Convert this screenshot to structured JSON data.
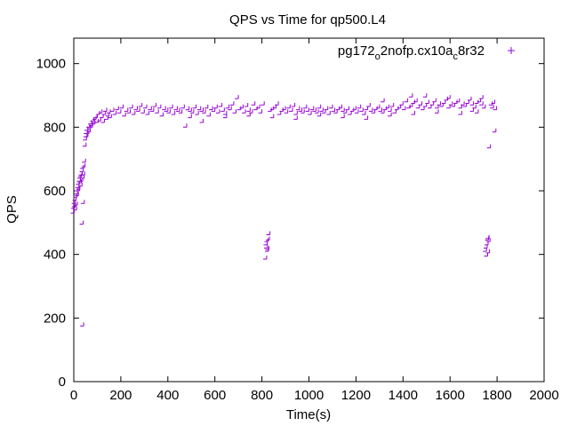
{
  "chart_data": {
    "type": "scatter",
    "title": "QPS vs Time for qp500.L4",
    "xlabel": "Time(s)",
    "ylabel": "QPS",
    "xlim": [
      0,
      2000
    ],
    "ylim": [
      0,
      1080
    ],
    "xticks": [
      0,
      200,
      400,
      600,
      800,
      1000,
      1200,
      1400,
      1600,
      1800,
      2000
    ],
    "yticks": [
      0,
      200,
      400,
      600,
      800,
      1000
    ],
    "grid": false,
    "legend_position": "top-right",
    "marker": "+",
    "series": [
      {
        "name_parts": [
          "pg172",
          "o",
          "2nofp.cx10a",
          "c",
          "8r32"
        ],
        "color": "#9400d3",
        "points": [
          [
            2,
            530
          ],
          [
            4,
            545
          ],
          [
            6,
            560
          ],
          [
            8,
            550
          ],
          [
            10,
            570
          ],
          [
            12,
            540
          ],
          [
            14,
            580
          ],
          [
            16,
            590
          ],
          [
            18,
            600
          ],
          [
            20,
            585
          ],
          [
            22,
            610
          ],
          [
            24,
            620
          ],
          [
            26,
            605
          ],
          [
            28,
            630
          ],
          [
            30,
            640
          ],
          [
            32,
            625
          ],
          [
            34,
            645
          ],
          [
            36,
            650
          ],
          [
            38,
            630
          ],
          [
            40,
            660
          ],
          [
            42,
            670
          ],
          [
            44,
            640
          ],
          [
            46,
            650
          ],
          [
            48,
            675
          ],
          [
            50,
            690
          ],
          [
            52,
            740
          ],
          [
            54,
            760
          ],
          [
            56,
            770
          ],
          [
            58,
            780
          ],
          [
            60,
            790
          ],
          [
            64,
            780
          ],
          [
            68,
            800
          ],
          [
            72,
            795
          ],
          [
            76,
            810
          ],
          [
            80,
            805
          ],
          [
            85,
            820
          ],
          [
            90,
            810
          ],
          [
            95,
            825
          ],
          [
            100,
            830
          ],
          [
            105,
            815
          ],
          [
            110,
            840
          ],
          [
            115,
            820
          ],
          [
            120,
            845
          ],
          [
            125,
            830
          ],
          [
            130,
            815
          ],
          [
            135,
            840
          ],
          [
            140,
            850
          ],
          [
            145,
            825
          ],
          [
            150,
            835
          ],
          [
            155,
            845
          ],
          [
            160,
            830
          ],
          [
            170,
            850
          ],
          [
            180,
            840
          ],
          [
            190,
            855
          ],
          [
            200,
            845
          ],
          [
            210,
            860
          ],
          [
            220,
            835
          ],
          [
            230,
            850
          ],
          [
            240,
            845
          ],
          [
            250,
            860
          ],
          [
            260,
            840
          ],
          [
            270,
            855
          ],
          [
            280,
            850
          ],
          [
            290,
            865
          ],
          [
            300,
            845
          ],
          [
            310,
            860
          ],
          [
            320,
            840
          ],
          [
            330,
            855
          ],
          [
            340,
            850
          ],
          [
            350,
            865
          ],
          [
            360,
            845
          ],
          [
            370,
            860
          ],
          [
            380,
            835
          ],
          [
            390,
            855
          ],
          [
            400,
            850
          ],
          [
            410,
            845
          ],
          [
            420,
            860
          ],
          [
            430,
            840
          ],
          [
            440,
            855
          ],
          [
            450,
            850
          ],
          [
            460,
            845
          ],
          [
            470,
            860
          ],
          [
            480,
            800
          ],
          [
            490,
            855
          ],
          [
            500,
            850
          ],
          [
            510,
            845
          ],
          [
            520,
            860
          ],
          [
            530,
            840
          ],
          [
            540,
            855
          ],
          [
            550,
            850
          ],
          [
            560,
            845
          ],
          [
            570,
            860
          ],
          [
            580,
            835
          ],
          [
            590,
            855
          ],
          [
            600,
            850
          ],
          [
            610,
            860
          ],
          [
            620,
            845
          ],
          [
            630,
            865
          ],
          [
            640,
            850
          ],
          [
            650,
            840
          ],
          [
            660,
            860
          ],
          [
            670,
            855
          ],
          [
            680,
            870
          ],
          [
            690,
            845
          ],
          [
            700,
            890
          ],
          [
            710,
            855
          ],
          [
            720,
            860
          ],
          [
            730,
            845
          ],
          [
            740,
            865
          ],
          [
            750,
            850
          ],
          [
            760,
            845
          ],
          [
            770,
            870
          ],
          [
            780,
            855
          ],
          [
            790,
            860
          ],
          [
            800,
            845
          ],
          [
            810,
            870
          ],
          [
            820,
            385
          ],
          [
            822,
            430
          ],
          [
            824,
            420
          ],
          [
            826,
            440
          ],
          [
            828,
            410
          ],
          [
            830,
            415
          ],
          [
            832,
            445
          ],
          [
            834,
            462
          ],
          [
            840,
            850
          ],
          [
            850,
            855
          ],
          [
            860,
            860
          ],
          [
            870,
            870
          ],
          [
            880,
            840
          ],
          [
            890,
            850
          ],
          [
            900,
            855
          ],
          [
            910,
            845
          ],
          [
            920,
            860
          ],
          [
            930,
            850
          ],
          [
            940,
            865
          ],
          [
            950,
            840
          ],
          [
            960,
            855
          ],
          [
            970,
            850
          ],
          [
            980,
            845
          ],
          [
            990,
            860
          ],
          [
            1000,
            850
          ],
          [
            1010,
            840
          ],
          [
            1020,
            855
          ],
          [
            1030,
            850
          ],
          [
            1040,
            845
          ],
          [
            1050,
            860
          ],
          [
            1060,
            850
          ],
          [
            1070,
            845
          ],
          [
            1080,
            855
          ],
          [
            1090,
            840
          ],
          [
            1100,
            860
          ],
          [
            1110,
            850
          ],
          [
            1120,
            845
          ],
          [
            1130,
            855
          ],
          [
            1140,
            860
          ],
          [
            1150,
            850
          ],
          [
            1160,
            845
          ],
          [
            1170,
            855
          ],
          [
            1180,
            840
          ],
          [
            1190,
            850
          ],
          [
            1200,
            855
          ],
          [
            1210,
            845
          ],
          [
            1220,
            860
          ],
          [
            1230,
            850
          ],
          [
            1240,
            840
          ],
          [
            1250,
            855
          ],
          [
            1260,
            865
          ],
          [
            1270,
            850
          ],
          [
            1280,
            845
          ],
          [
            1290,
            855
          ],
          [
            1300,
            860
          ],
          [
            1310,
            850
          ],
          [
            1320,
            845
          ],
          [
            1330,
            855
          ],
          [
            1340,
            860
          ],
          [
            1350,
            850
          ],
          [
            1360,
            865
          ],
          [
            1370,
            845
          ],
          [
            1380,
            855
          ],
          [
            1390,
            860
          ],
          [
            1400,
            870
          ],
          [
            1410,
            855
          ],
          [
            1420,
            880
          ],
          [
            1430,
            860
          ],
          [
            1440,
            865
          ],
          [
            1450,
            875
          ],
          [
            1460,
            880
          ],
          [
            1470,
            860
          ],
          [
            1480,
            870
          ],
          [
            1490,
            855
          ],
          [
            1500,
            865
          ],
          [
            1510,
            875
          ],
          [
            1520,
            860
          ],
          [
            1530,
            870
          ],
          [
            1540,
            880
          ],
          [
            1550,
            860
          ],
          [
            1560,
            870
          ],
          [
            1570,
            865
          ],
          [
            1580,
            875
          ],
          [
            1590,
            885
          ],
          [
            1600,
            860
          ],
          [
            1610,
            870
          ],
          [
            1620,
            865
          ],
          [
            1630,
            875
          ],
          [
            1640,
            880
          ],
          [
            1650,
            860
          ],
          [
            1660,
            870
          ],
          [
            1670,
            865
          ],
          [
            1680,
            875
          ],
          [
            1690,
            885
          ],
          [
            1700,
            870
          ],
          [
            1710,
            860
          ],
          [
            1720,
            875
          ],
          [
            1730,
            880
          ],
          [
            1740,
            870
          ],
          [
            1750,
            860
          ],
          [
            1755,
            410
          ],
          [
            1758,
            420
          ],
          [
            1760,
            395
          ],
          [
            1762,
            430
          ],
          [
            1764,
            445
          ],
          [
            1766,
            450
          ],
          [
            1768,
            405
          ],
          [
            1770,
            440
          ],
          [
            1772,
            735
          ],
          [
            1780,
            870
          ],
          [
            1785,
            860
          ],
          [
            1790,
            875
          ],
          [
            1795,
            785
          ],
          [
            1798,
            855
          ],
          [
            40,
            495
          ],
          [
            45,
            560
          ],
          [
            42,
            175
          ],
          [
            15,
            555
          ],
          [
            25,
            600
          ],
          [
            35,
            615
          ],
          [
            60,
            770
          ],
          [
            70,
            785
          ],
          [
            80,
            800
          ],
          [
            90,
            815
          ],
          [
            500,
            830
          ],
          [
            550,
            815
          ],
          [
            650,
            830
          ],
          [
            750,
            835
          ],
          [
            850,
            830
          ],
          [
            950,
            825
          ],
          [
            1050,
            835
          ],
          [
            1150,
            830
          ],
          [
            1250,
            825
          ],
          [
            1350,
            835
          ],
          [
            1450,
            840
          ],
          [
            1550,
            845
          ],
          [
            1650,
            840
          ],
          [
            1700,
            850
          ],
          [
            1720,
            845
          ],
          [
            1740,
            890
          ],
          [
            1600,
            890
          ],
          [
            1500,
            895
          ],
          [
            1440,
            895
          ],
          [
            1320,
            880
          ]
        ]
      }
    ]
  }
}
